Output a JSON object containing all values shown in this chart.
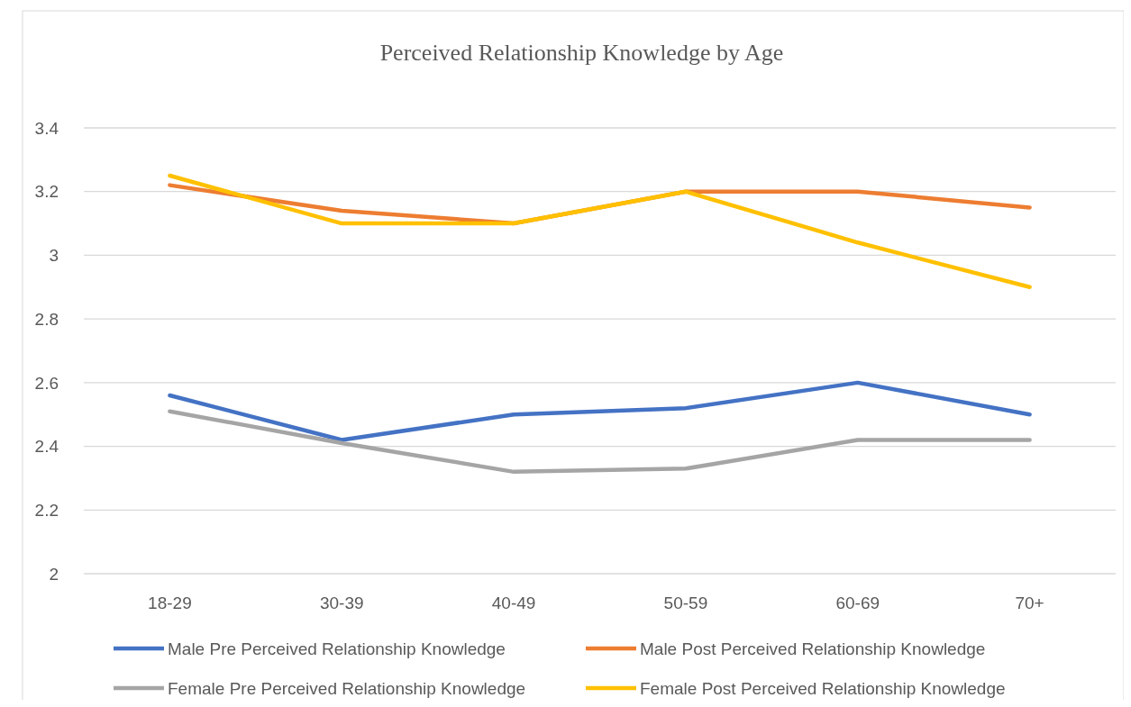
{
  "chart_data": {
    "type": "line",
    "title": "Perceived Relationship Knowledge by Age",
    "categories": [
      "18-29",
      "30-39",
      "40-49",
      "50-59",
      "60-69",
      "70+"
    ],
    "series": [
      {
        "name": "Male Pre Perceived Relationship Knowledge",
        "color": "#4472c4",
        "values": [
          2.56,
          2.42,
          2.5,
          2.52,
          2.6,
          2.5
        ]
      },
      {
        "name": "Male Post Perceived Relationship Knowledge",
        "color": "#ed7d31",
        "values": [
          3.22,
          3.14,
          3.1,
          3.2,
          3.2,
          3.15
        ]
      },
      {
        "name": "Female Pre Perceived Relationship Knowledge",
        "color": "#a5a5a5",
        "values": [
          2.51,
          2.41,
          2.32,
          2.33,
          2.42,
          2.42
        ]
      },
      {
        "name": "Female Post Perceived Relationship Knowledge",
        "color": "#ffc000",
        "values": [
          3.25,
          3.1,
          3.1,
          3.2,
          3.04,
          2.9
        ]
      }
    ],
    "ylim": [
      2,
      3.4
    ],
    "yticks": [
      2,
      2.2,
      2.4,
      2.6,
      2.8,
      3,
      3.2,
      3.4
    ],
    "grid": "y",
    "legend": "bottom",
    "marker": "none",
    "line_style": "solid"
  }
}
